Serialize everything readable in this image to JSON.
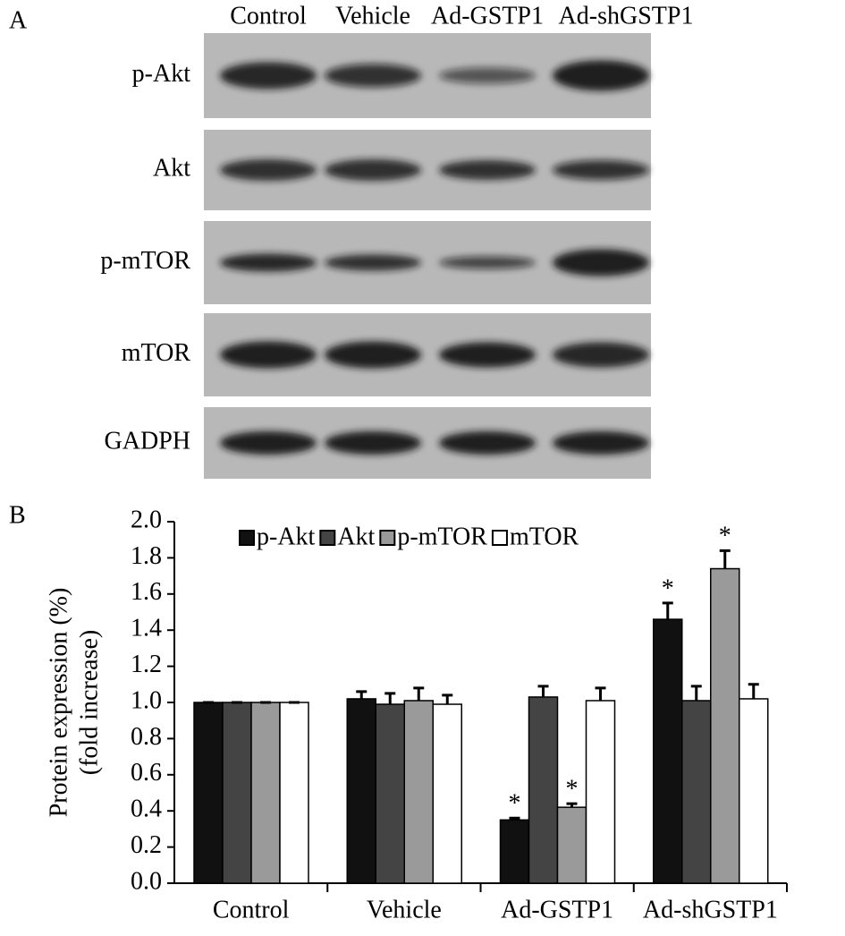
{
  "blot": {
    "panel_label": "A",
    "lanes": [
      "Control",
      "Vehicle",
      "Ad-GSTP1",
      "Ad-shGSTP1"
    ],
    "rows": [
      "p-Akt",
      "Akt",
      "p-mTOR",
      "mTOR",
      "GADPH"
    ]
  },
  "chart_data": {
    "type": "bar",
    "panel_label": "B",
    "ylabel": [
      "Protein expression (%)",
      "(fold increase)"
    ],
    "categories": [
      "Control",
      "Vehicle",
      "Ad-GSTP1",
      "Ad-shGSTP1"
    ],
    "series": [
      {
        "name": "p-Akt",
        "color": "#111111",
        "values": [
          1.0,
          1.02,
          0.35,
          1.46
        ],
        "errors": [
          0,
          0.04,
          0.01,
          0.09
        ],
        "annotations": [
          null,
          null,
          "*",
          "*"
        ]
      },
      {
        "name": "Akt",
        "color": "#444444",
        "values": [
          1.0,
          0.99,
          1.03,
          1.01
        ],
        "errors": [
          0,
          0.06,
          0.06,
          0.08
        ],
        "annotations": [
          null,
          null,
          null,
          null
        ]
      },
      {
        "name": "p-mTOR",
        "color": "#9a9a9a",
        "values": [
          1.0,
          1.01,
          0.42,
          1.74
        ],
        "errors": [
          0,
          0.07,
          0.02,
          0.1
        ],
        "annotations": [
          null,
          null,
          "*",
          "*"
        ]
      },
      {
        "name": "mTOR",
        "color": "#ffffff",
        "values": [
          1.0,
          0.99,
          1.01,
          1.02
        ],
        "errors": [
          0,
          0.05,
          0.07,
          0.08
        ],
        "annotations": [
          null,
          null,
          null,
          null
        ]
      }
    ],
    "ylim": [
      0,
      2
    ],
    "yticks": [
      {
        "value": 0,
        "label": "0.0"
      },
      0.2,
      0.4,
      0.6,
      0.8,
      {
        "value": 1,
        "label": "1.0"
      },
      1.2,
      1.4,
      1.6,
      1.8,
      {
        "value": 2,
        "label": "2.0"
      }
    ],
    "legend": "top"
  }
}
